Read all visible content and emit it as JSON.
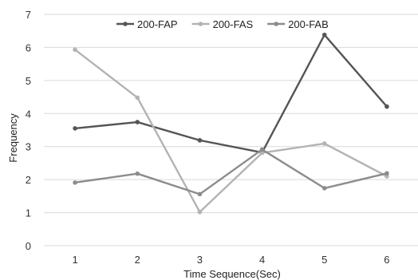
{
  "chart_data": {
    "type": "line",
    "xlabel": "Time Sequence(Sec)",
    "ylabel": "Frequency",
    "x": [
      1,
      2,
      3,
      4,
      5,
      6
    ],
    "ylim": [
      0,
      7
    ],
    "yticks": [
      0,
      1,
      2,
      3,
      4,
      5,
      6,
      7
    ],
    "grid": "horizontal",
    "legend_position": "top",
    "series": [
      {
        "name": "200-FAP",
        "color": "#555555",
        "values": [
          3.55,
          3.74,
          3.19,
          2.82,
          6.38,
          4.21
        ]
      },
      {
        "name": "200-FAS",
        "color": "#b3b3b3",
        "values": [
          5.93,
          4.48,
          1.02,
          2.81,
          3.09,
          2.1
        ]
      },
      {
        "name": "200-FAB",
        "color": "#8c8c8c",
        "values": [
          1.91,
          2.18,
          1.56,
          2.91,
          1.74,
          2.19
        ]
      }
    ]
  }
}
